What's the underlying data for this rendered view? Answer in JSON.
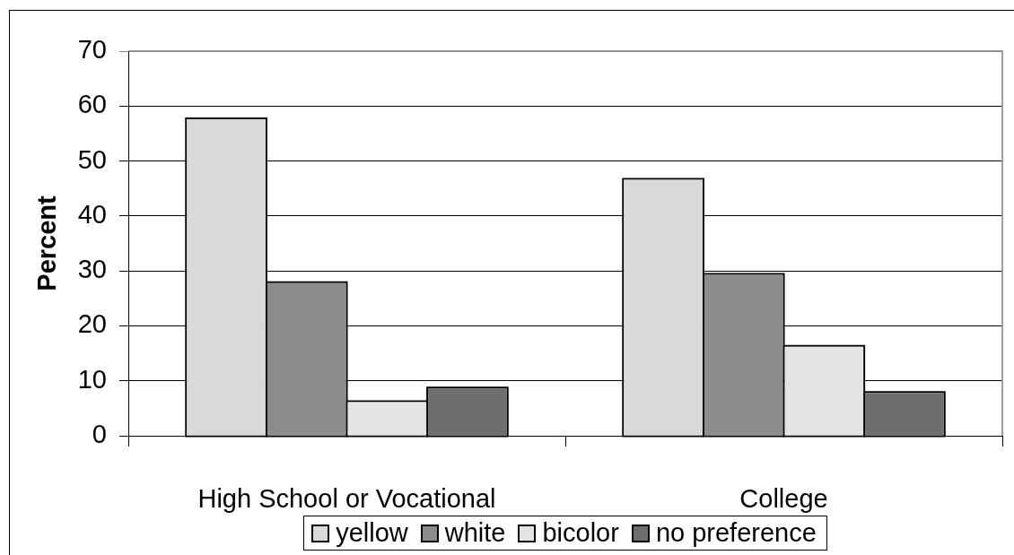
{
  "chart_data": {
    "type": "bar",
    "ylabel": "Percent",
    "categories": [
      "High School or Vocational",
      "College"
    ],
    "series": [
      {
        "name": "yellow",
        "color": "#d9d9d9",
        "values": [
          57.6,
          46.6
        ]
      },
      {
        "name": "white",
        "color": "#8c8c8c",
        "values": [
          27.8,
          29.3
        ]
      },
      {
        "name": "bicolor",
        "color": "#e4e4e4",
        "values": [
          6.1,
          16.2
        ]
      },
      {
        "name": "no preference",
        "color": "#6e6e6e",
        "values": [
          8.6,
          7.8
        ]
      }
    ],
    "ylim": [
      0,
      70
    ],
    "yticks": [
      0,
      10,
      20,
      30,
      40,
      50,
      60,
      70
    ],
    "grid": "y",
    "legend": "bottom"
  }
}
